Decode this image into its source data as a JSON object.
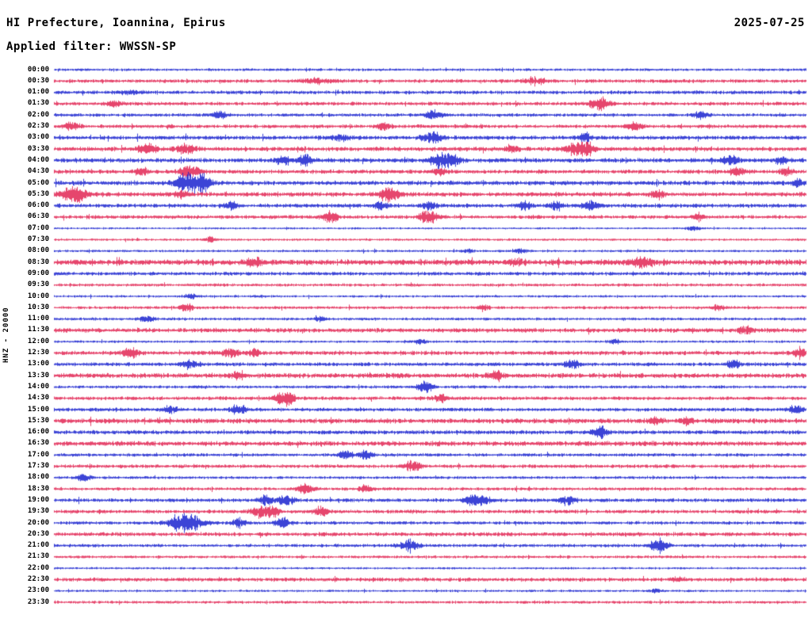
{
  "header": {
    "title": "HI Prefecture, Ioannina, Epirus",
    "date": "2025-07-25",
    "filter": "Applied filter: WWSSN-SP"
  },
  "side_label": "HNZ - 20000",
  "chart_data": {
    "type": "line",
    "subtype": "helicorder-seismogram",
    "title": "HI Prefecture, Ioannina, Epirus",
    "subtitle": "Applied filter: WWSSN-SP",
    "date": "2025-07-25",
    "channel": "HNZ",
    "scale": 20000,
    "row_interval_minutes": 30,
    "start_time": "00:00",
    "end_time": "23:30",
    "legend": "rows alternate blue/red, one 30-minute trace per row",
    "colors": {
      "even": "#0a14cc",
      "odd": "#e01747"
    },
    "rows": [
      {
        "label": "00:00",
        "noise": 1.3,
        "events": []
      },
      {
        "label": "00:30",
        "noise": 1.8,
        "events": [
          [
            0.35,
            2.5,
            14
          ],
          [
            0.64,
            2.5,
            12
          ]
        ]
      },
      {
        "label": "01:00",
        "noise": 1.8,
        "events": [
          [
            0.1,
            2,
            10
          ]
        ]
      },
      {
        "label": "01:30",
        "noise": 1.8,
        "events": [
          [
            0.725,
            7,
            8
          ],
          [
            0.08,
            3,
            8
          ]
        ]
      },
      {
        "label": "02:00",
        "noise": 1.6,
        "events": [
          [
            0.22,
            5,
            6
          ],
          [
            0.505,
            6,
            7
          ],
          [
            0.86,
            4,
            6
          ]
        ]
      },
      {
        "label": "02:30",
        "noise": 1.8,
        "events": [
          [
            0.023,
            4,
            7
          ],
          [
            0.438,
            5,
            6
          ],
          [
            0.772,
            4.5,
            7
          ]
        ]
      },
      {
        "label": "03:00",
        "noise": 2.0,
        "events": [
          [
            0.503,
            7,
            8
          ],
          [
            0.706,
            4,
            6
          ],
          [
            0.38,
            3,
            8
          ]
        ]
      },
      {
        "label": "03:30",
        "noise": 2.2,
        "events": [
          [
            0.123,
            5,
            8
          ],
          [
            0.176,
            6,
            8
          ],
          [
            0.609,
            4,
            6
          ],
          [
            0.693,
            7,
            8
          ],
          [
            0.71,
            6,
            6
          ]
        ]
      },
      {
        "label": "04:00",
        "noise": 2.2,
        "events": [
          [
            0.303,
            5,
            6
          ],
          [
            0.334,
            6,
            6
          ],
          [
            0.514,
            7,
            9
          ],
          [
            0.53,
            6,
            6
          ],
          [
            0.899,
            5,
            7
          ],
          [
            0.967,
            4,
            5
          ]
        ]
      },
      {
        "label": "04:30",
        "noise": 2.0,
        "events": [
          [
            0.116,
            4,
            6
          ],
          [
            0.181,
            7,
            9
          ],
          [
            0.514,
            4,
            6
          ],
          [
            0.909,
            5,
            6
          ],
          [
            0.973,
            5,
            5
          ]
        ]
      },
      {
        "label": "05:00",
        "noise": 2.2,
        "events": [
          [
            0.171,
            8,
            7
          ],
          [
            0.187,
            9,
            8
          ],
          [
            0.2,
            7,
            6
          ],
          [
            0.988,
            4,
            5
          ]
        ]
      },
      {
        "label": "05:30",
        "noise": 2.2,
        "events": [
          [
            0.018,
            6,
            8
          ],
          [
            0.034,
            7,
            8
          ],
          [
            0.171,
            4,
            6
          ],
          [
            0.445,
            7,
            9
          ],
          [
            0.804,
            4,
            6
          ]
        ]
      },
      {
        "label": "06:00",
        "noise": 2.0,
        "events": [
          [
            0.234,
            4,
            6
          ],
          [
            0.435,
            4.5,
            6
          ],
          [
            0.498,
            5,
            6
          ],
          [
            0.625,
            4,
            6
          ],
          [
            0.667,
            4,
            6
          ],
          [
            0.714,
            5,
            8
          ]
        ]
      },
      {
        "label": "06:30",
        "noise": 1.8,
        "events": [
          [
            0.366,
            6,
            7
          ],
          [
            0.498,
            7,
            8
          ],
          [
            0.857,
            4,
            5
          ]
        ]
      },
      {
        "label": "07:00",
        "noise": 1.0,
        "events": [
          [
            0.851,
            3,
            6
          ]
        ]
      },
      {
        "label": "07:30",
        "noise": 1.2,
        "events": [
          [
            0.208,
            3,
            5
          ]
        ]
      },
      {
        "label": "08:00",
        "noise": 1.2,
        "events": [
          [
            0.55,
            2.5,
            5
          ],
          [
            0.62,
            2.5,
            5
          ]
        ]
      },
      {
        "label": "08:30",
        "noise": 2.8,
        "events": [
          [
            0.266,
            4,
            7
          ],
          [
            0.614,
            4,
            6
          ],
          [
            0.783,
            5,
            10
          ]
        ]
      },
      {
        "label": "09:00",
        "noise": 1.8,
        "events": []
      },
      {
        "label": "09:30",
        "noise": 1.5,
        "events": []
      },
      {
        "label": "10:00",
        "noise": 1.2,
        "events": [
          [
            0.181,
            3,
            5
          ]
        ]
      },
      {
        "label": "10:30",
        "noise": 1.5,
        "events": [
          [
            0.176,
            4,
            6
          ],
          [
            0.572,
            3,
            5
          ],
          [
            0.883,
            3,
            5
          ]
        ]
      },
      {
        "label": "11:00",
        "noise": 1.4,
        "events": [
          [
            0.123,
            4,
            6
          ],
          [
            0.355,
            3,
            5
          ]
        ]
      },
      {
        "label": "11:30",
        "noise": 2.2,
        "events": [
          [
            0.92,
            4,
            6
          ]
        ]
      },
      {
        "label": "12:00",
        "noise": 1.2,
        "events": [
          [
            0.487,
            3,
            5
          ],
          [
            0.746,
            3,
            5
          ]
        ]
      },
      {
        "label": "12:30",
        "noise": 2.0,
        "events": [
          [
            0.102,
            5,
            7
          ],
          [
            0.234,
            5,
            7
          ],
          [
            0.266,
            4,
            6
          ],
          [
            0.991,
            6,
            6
          ]
        ]
      },
      {
        "label": "13:00",
        "noise": 1.8,
        "events": [
          [
            0.181,
            5,
            7
          ],
          [
            0.688,
            5,
            7
          ],
          [
            0.904,
            5,
            6
          ]
        ]
      },
      {
        "label": "13:30",
        "noise": 2.4,
        "events": [
          [
            0.245,
            4,
            6
          ],
          [
            0.588,
            5,
            7
          ]
        ]
      },
      {
        "label": "14:00",
        "noise": 1.5,
        "events": [
          [
            0.493,
            6,
            7
          ]
        ]
      },
      {
        "label": "14:30",
        "noise": 1.8,
        "events": [
          [
            0.303,
            6,
            7
          ],
          [
            0.313,
            5,
            5
          ],
          [
            0.514,
            4,
            6
          ]
        ]
      },
      {
        "label": "15:00",
        "noise": 1.8,
        "events": [
          [
            0.155,
            4,
            6
          ],
          [
            0.245,
            5,
            7
          ],
          [
            0.988,
            5,
            6
          ]
        ]
      },
      {
        "label": "15:30",
        "noise": 2.4,
        "events": [
          [
            0.799,
            4,
            6
          ],
          [
            0.841,
            4,
            6
          ]
        ]
      },
      {
        "label": "16:00",
        "noise": 2.0,
        "events": [
          [
            0.725,
            6,
            7
          ]
        ]
      },
      {
        "label": "16:30",
        "noise": 2.4,
        "events": []
      },
      {
        "label": "17:00",
        "noise": 1.6,
        "events": [
          [
            0.387,
            4,
            6
          ],
          [
            0.414,
            5,
            6
          ]
        ]
      },
      {
        "label": "17:30",
        "noise": 1.8,
        "events": [
          [
            0.477,
            6,
            7
          ]
        ]
      },
      {
        "label": "18:00",
        "noise": 1.4,
        "events": [
          [
            0.039,
            4,
            6
          ]
        ]
      },
      {
        "label": "18:30",
        "noise": 1.6,
        "events": [
          [
            0.334,
            6,
            7
          ],
          [
            0.414,
            4,
            5
          ]
        ]
      },
      {
        "label": "19:00",
        "noise": 1.8,
        "events": [
          [
            0.282,
            5,
            6
          ],
          [
            0.308,
            6,
            7
          ],
          [
            0.556,
            6,
            7
          ],
          [
            0.572,
            5,
            6
          ],
          [
            0.683,
            5,
            6
          ]
        ]
      },
      {
        "label": "19:30",
        "noise": 1.8,
        "events": [
          [
            0.276,
            7,
            8
          ],
          [
            0.292,
            5,
            5
          ],
          [
            0.355,
            5,
            6
          ]
        ]
      },
      {
        "label": "20:00",
        "noise": 1.6,
        "events": [
          [
            0.176,
            12,
            14
          ],
          [
            0.245,
            5,
            6
          ],
          [
            0.303,
            6,
            6
          ]
        ]
      },
      {
        "label": "20:30",
        "noise": 2.0,
        "events": []
      },
      {
        "label": "21:00",
        "noise": 1.6,
        "events": [
          [
            0.472,
            7,
            8
          ],
          [
            0.799,
            5,
            6
          ],
          [
            0.809,
            5,
            6
          ]
        ]
      },
      {
        "label": "21:30",
        "noise": 1.4,
        "events": []
      },
      {
        "label": "22:00",
        "noise": 1.1,
        "events": []
      },
      {
        "label": "22:30",
        "noise": 1.9,
        "events": [
          [
            0.83,
            3,
            5
          ]
        ]
      },
      {
        "label": "23:00",
        "noise": 1.1,
        "events": [
          [
            0.8,
            2,
            5
          ]
        ]
      },
      {
        "label": "23:30",
        "noise": 1.4,
        "events": []
      }
    ]
  }
}
